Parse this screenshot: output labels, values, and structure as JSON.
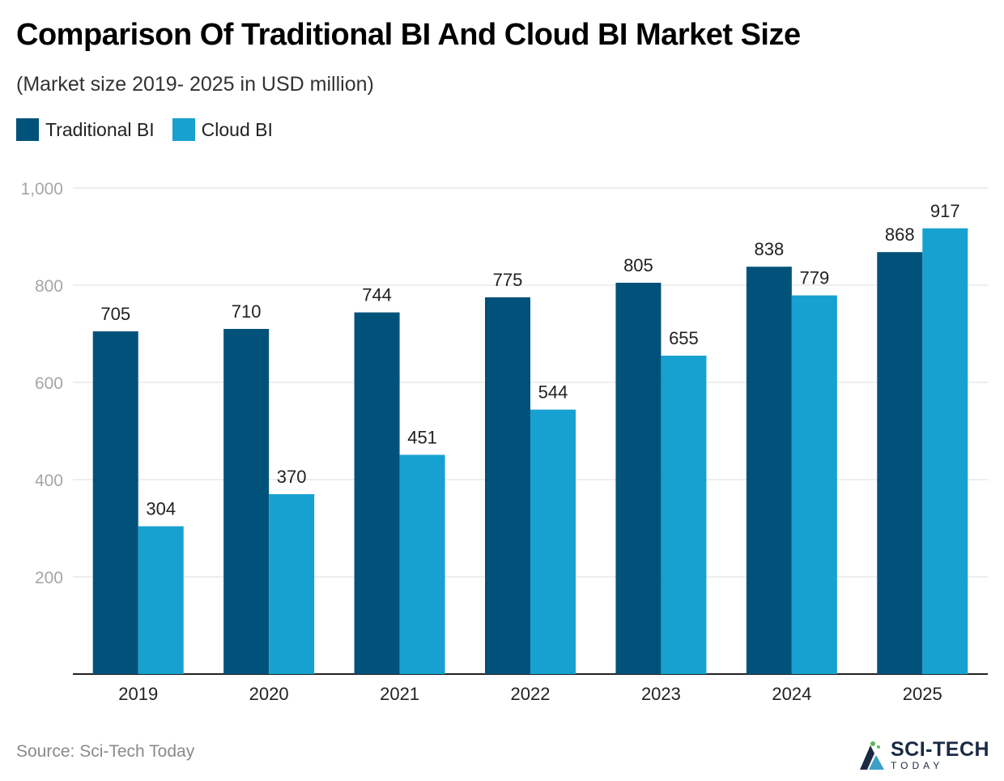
{
  "title": "Comparison Of Traditional BI And Cloud BI Market Size",
  "subtitle": "(Market size 2019- 2025 in USD million)",
  "legend": [
    {
      "label": "Traditional BI",
      "color": "#01527a"
    },
    {
      "label": "Cloud BI",
      "color": "#17a1d0"
    }
  ],
  "source": "Source: Sci-Tech Today",
  "logo": {
    "main": "SCI-TECH",
    "sub": "TODAY",
    "icon": "sci-tech-logo-icon"
  },
  "chart_data": {
    "type": "bar",
    "title": "Comparison Of Traditional BI And Cloud BI Market Size",
    "subtitle": "(Market size 2019- 2025 in USD million)",
    "categories": [
      "2019",
      "2020",
      "2021",
      "2022",
      "2023",
      "2024",
      "2025"
    ],
    "series": [
      {
        "name": "Traditional BI",
        "color": "#01527a",
        "values": [
          705,
          710,
          744,
          775,
          805,
          838,
          868
        ]
      },
      {
        "name": "Cloud BI",
        "color": "#17a1d0",
        "values": [
          304,
          370,
          451,
          544,
          655,
          779,
          917
        ]
      }
    ],
    "ylim": [
      0,
      1000
    ],
    "yticks": [
      200,
      400,
      600,
      800,
      1000
    ],
    "ytick_labels": [
      "200",
      "400",
      "600",
      "800",
      "1,000"
    ],
    "xlabel": "",
    "ylabel": "",
    "grid": true,
    "legend_position": "top-left"
  }
}
